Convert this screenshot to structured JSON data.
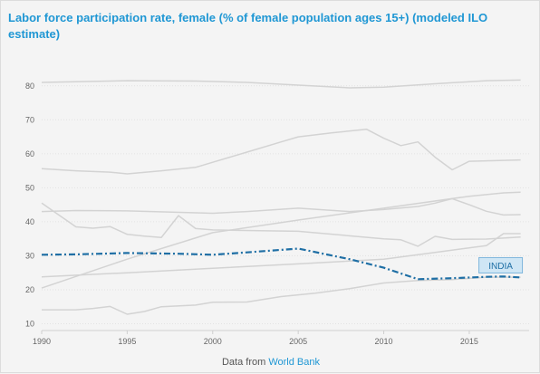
{
  "chart_data": {
    "type": "line",
    "title": "Labor force participation rate, female (% of female population ages 15+) (modeled ILO estimate)",
    "xlabel": "",
    "ylabel": "",
    "xlim": [
      1990,
      2018.5
    ],
    "ylim": [
      8,
      85
    ],
    "x_ticks": [
      1990,
      1995,
      2000,
      2005,
      2010,
      2015
    ],
    "y_ticks": [
      10,
      20,
      30,
      40,
      50,
      60,
      70,
      80
    ],
    "grid": true,
    "highlight_label": "INDIA",
    "series": [
      {
        "highlight": true,
        "color": "#1f6fa5",
        "points": [
          [
            1990,
            30.3
          ],
          [
            1992,
            30.4
          ],
          [
            1995,
            30.8
          ],
          [
            1998,
            30.6
          ],
          [
            2000,
            30.3
          ],
          [
            2002,
            31
          ],
          [
            2005,
            32.1
          ],
          [
            2008,
            29
          ],
          [
            2010,
            26.5
          ],
          [
            2012,
            23.1
          ],
          [
            2014,
            23.4
          ],
          [
            2016,
            23.8
          ],
          [
            2017,
            23.9
          ],
          [
            2018,
            23.6
          ]
        ]
      },
      {
        "points": [
          [
            1990,
            81
          ],
          [
            1992,
            81.2
          ],
          [
            1995,
            81.5
          ],
          [
            1999,
            81.4
          ],
          [
            2002,
            81
          ],
          [
            2005,
            80.2
          ],
          [
            2008,
            79.4
          ],
          [
            2010,
            79.6
          ],
          [
            2013,
            80.6
          ],
          [
            2016,
            81.5
          ],
          [
            2018,
            81.7
          ]
        ]
      },
      {
        "points": [
          [
            1990,
            55.6
          ],
          [
            1992,
            55
          ],
          [
            1994,
            54.6
          ],
          [
            1995,
            54.1
          ],
          [
            1997,
            55
          ],
          [
            1999,
            56
          ],
          [
            2000,
            57.5
          ],
          [
            2002,
            60.5
          ],
          [
            2004,
            63.5
          ],
          [
            2005,
            65
          ],
          [
            2007,
            66.2
          ],
          [
            2009,
            67.2
          ],
          [
            2010,
            64.6
          ],
          [
            2011,
            62.4
          ],
          [
            2012,
            63.5
          ],
          [
            2013,
            59
          ],
          [
            2014,
            55.3
          ],
          [
            2015,
            57.8
          ],
          [
            2018,
            58.2
          ]
        ]
      },
      {
        "points": [
          [
            1990,
            43
          ],
          [
            1992,
            43.3
          ],
          [
            1995,
            43.2
          ],
          [
            2000,
            42.5
          ],
          [
            2002,
            43
          ],
          [
            2005,
            44
          ],
          [
            2008,
            43
          ],
          [
            2010,
            43.6
          ],
          [
            2012,
            44.5
          ],
          [
            2013,
            45.5
          ],
          [
            2014,
            46.8
          ],
          [
            2015,
            45
          ],
          [
            2016,
            43.1
          ],
          [
            2017,
            42
          ],
          [
            2018,
            42.1
          ]
        ]
      },
      {
        "points": [
          [
            1990,
            45.5
          ],
          [
            1991,
            42
          ],
          [
            1992,
            38.5
          ],
          [
            1993,
            38.1
          ],
          [
            1994,
            38.6
          ],
          [
            1995,
            36.3
          ],
          [
            1996,
            35.8
          ],
          [
            1997,
            35.4
          ],
          [
            1998,
            41.8
          ],
          [
            1999,
            38
          ],
          [
            2000,
            37.6
          ],
          [
            2005,
            37.2
          ],
          [
            2010,
            35
          ],
          [
            2011,
            34.7
          ],
          [
            2012,
            32.8
          ],
          [
            2013,
            35.7
          ],
          [
            2014,
            34.8
          ],
          [
            2016,
            34.9
          ],
          [
            2018,
            35.5
          ]
        ]
      },
      {
        "points": [
          [
            1990,
            20.5
          ],
          [
            1995,
            29
          ],
          [
            2000,
            36.8
          ],
          [
            2005,
            40.5
          ],
          [
            2010,
            44
          ],
          [
            2015,
            47.5
          ],
          [
            2017,
            48.5
          ],
          [
            2018,
            48.7
          ]
        ]
      },
      {
        "points": [
          [
            1990,
            23.8
          ],
          [
            1995,
            25
          ],
          [
            2000,
            26.3
          ],
          [
            2005,
            27.6
          ],
          [
            2010,
            29
          ],
          [
            2013,
            31
          ],
          [
            2016,
            33
          ],
          [
            2017,
            36.5
          ],
          [
            2018,
            36.5
          ]
        ]
      },
      {
        "points": [
          [
            1990,
            14.1
          ],
          [
            1992,
            14.1
          ],
          [
            1993,
            14.5
          ],
          [
            1994,
            15.1
          ],
          [
            1995,
            12.8
          ],
          [
            1996,
            13.6
          ],
          [
            1997,
            15
          ],
          [
            1999,
            15.5
          ],
          [
            2000,
            16.3
          ],
          [
            2002,
            16.4
          ],
          [
            2004,
            18
          ],
          [
            2006,
            19
          ],
          [
            2008,
            20.3
          ],
          [
            2010,
            22
          ],
          [
            2012,
            22.7
          ],
          [
            2014,
            23
          ],
          [
            2016,
            23.7
          ],
          [
            2018,
            23.7
          ]
        ]
      }
    ]
  },
  "source": {
    "prefix": "Data from",
    "link": "World Bank"
  }
}
